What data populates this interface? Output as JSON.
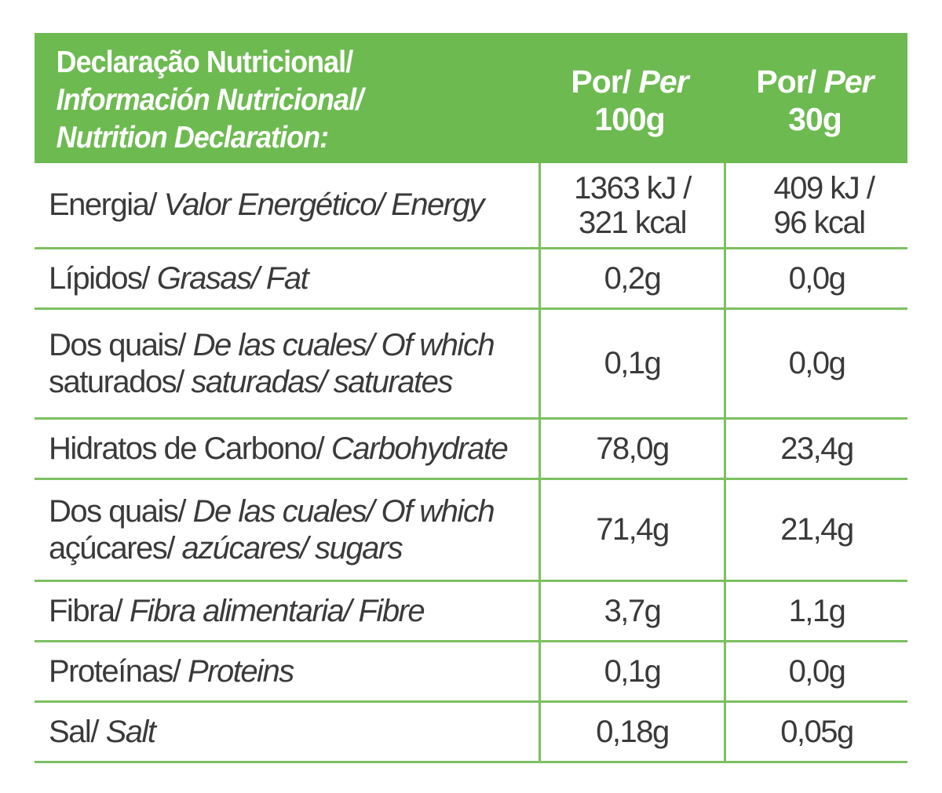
{
  "header": {
    "title_line1": "Declaração Nutricional/",
    "title_line2": "Información Nutricional/",
    "title_line3": "Nutrition Declaration:",
    "col1_por": "Por/",
    "col1_per": "Per",
    "col1_amount": "100g",
    "col2_por": "Por/",
    "col2_per": "Per",
    "col2_amount": "30g"
  },
  "rows": [
    {
      "label_regular": "Energia/",
      "label_italic": "Valor Energético/ Energy",
      "per100_line1": "1363 kJ /",
      "per100_line2": "321 kcal",
      "per30_line1": "409 kJ /",
      "per30_line2": "96 kcal"
    },
    {
      "label_regular": "Lípidos/",
      "label_italic": "Grasas/ Fat",
      "per100": "0,2g",
      "per30": "0,0g"
    },
    {
      "label_line1_regular": "Dos quais/",
      "label_line1_italic": "De las cuales/ Of which",
      "label_line2_regular": "saturados/",
      "label_line2_italic": "saturadas/ saturates",
      "per100": "0,1g",
      "per30": "0,0g"
    },
    {
      "label_regular": "Hidratos de Carbono/",
      "label_italic": "Carbohydrate",
      "per100": "78,0g",
      "per30": "23,4g"
    },
    {
      "label_line1_regular": "Dos quais/",
      "label_line1_italic": "De las cuales/ Of which",
      "label_line2_regular": "açúcares/",
      "label_line2_italic": "azúcares/ sugars",
      "per100": "71,4g",
      "per30": "21,4g"
    },
    {
      "label_regular": "Fibra/",
      "label_italic": "Fibra alimentaria/ Fibre",
      "per100": "3,7g",
      "per30": "1,1g"
    },
    {
      "label_regular": "Proteínas/",
      "label_italic": "Proteins",
      "per100": "0,1g",
      "per30": "0,0g"
    },
    {
      "label_regular": "Sal/",
      "label_italic": "Salt",
      "per100": "0,18g",
      "per30": "0,05g"
    }
  ],
  "colors": {
    "header_green": "#6dba51",
    "rule_green": "#7cc061",
    "text": "#3a3a3a"
  }
}
